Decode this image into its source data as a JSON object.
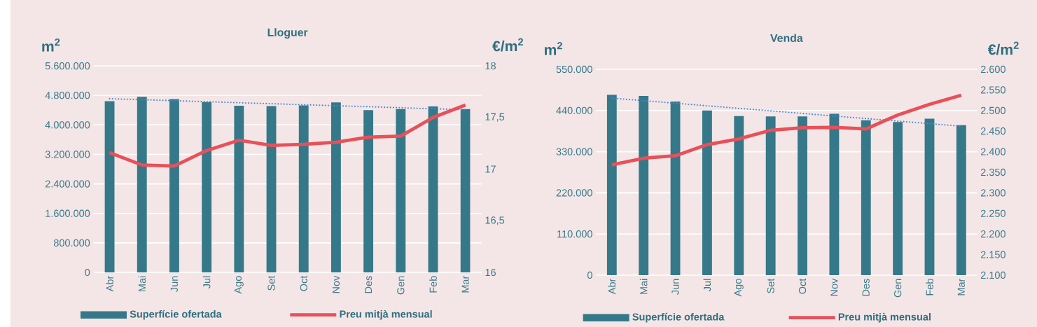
{
  "chart_data": [
    {
      "type": "bar",
      "title": "Lloguer",
      "ylabel": "m$^{2}$",
      "y2label": "€/m$^{2}$",
      "categories": [
        "Abr",
        "Mai",
        "Jun",
        "Jul",
        "Ago",
        "Set",
        "Oct",
        "Nov",
        "Des",
        "Gen",
        "Feb",
        "Mar"
      ],
      "series": [
        {
          "name": "Superfície ofertada",
          "color": "#35788a",
          "values": [
            4640000,
            4760000,
            4700000,
            4620000,
            4520000,
            4510000,
            4530000,
            4610000,
            4400000,
            4430000,
            4500000,
            4430000
          ]
        },
        {
          "name": "Preu mitjà mensual",
          "type": "line",
          "axis": "y2",
          "color": "#e8505a",
          "values": [
            17.16,
            17.04,
            17.03,
            17.18,
            17.28,
            17.23,
            17.24,
            17.26,
            17.31,
            17.32,
            17.5,
            17.62
          ]
        },
        {
          "type": "line",
          "line_style": "dotted",
          "color": "#4a86d8",
          "values": [
            4710000,
            null,
            null,
            null,
            null,
            null,
            null,
            null,
            null,
            null,
            null,
            4410000
          ]
        }
      ],
      "ylim": [
        0,
        5600000
      ],
      "yticks": [
        0,
        {
          "value": 800000,
          "label": "800.000"
        },
        {
          "value": 1600000,
          "label": "1.600.000"
        },
        {
          "value": 2400000,
          "label": "2.400.000"
        },
        {
          "value": 3200000,
          "label": "3.200.000"
        },
        {
          "value": 4000000,
          "label": "4.000.000"
        },
        {
          "value": 4800000,
          "label": "4.800.000"
        },
        {
          "value": 5600000,
          "label": "5.600.000"
        }
      ],
      "y2lim": [
        16,
        18
      ],
      "y2ticks": [
        16,
        {
          "value": 16.5,
          "label": "16,5"
        },
        17,
        {
          "value": 17.5,
          "label": "17,5"
        },
        18
      ],
      "grid": "y",
      "legend": "bottom"
    },
    {
      "type": "bar",
      "title": "Venda",
      "ylabel": "m$^{2}$",
      "y2label": "€/m$^{2}$",
      "categories": [
        "Abr",
        "Mai",
        "Jun",
        "Jul",
        "Ago",
        "Set",
        "Oct",
        "Nov",
        "Des",
        "Gen",
        "Feb",
        "Mar"
      ],
      "series": [
        {
          "name": "Superfície ofertada",
          "color": "#35788a",
          "values": [
            482000,
            479000,
            464000,
            440000,
            425000,
            424000,
            424000,
            431000,
            414000,
            409000,
            418000,
            401000
          ]
        },
        {
          "name": "Preu mitjà mensual",
          "type": "line",
          "axis": "y2",
          "color": "#e8505a",
          "values": [
            2368,
            2384,
            2390,
            2417,
            2431,
            2452,
            2458,
            2459,
            2455,
            2489,
            2515,
            2537
          ]
        },
        {
          "type": "line",
          "line_style": "dotted",
          "color": "#4a86d8",
          "values": [
            473000,
            null,
            null,
            null,
            null,
            null,
            null,
            null,
            null,
            null,
            null,
            398000
          ]
        }
      ],
      "ylim": [
        0,
        550000
      ],
      "yticks": [
        0,
        {
          "value": 110000,
          "label": "110.000"
        },
        {
          "value": 220000,
          "label": "220.000"
        },
        {
          "value": 330000,
          "label": "330.000"
        },
        {
          "value": 440000,
          "label": "440.000"
        },
        {
          "value": 550000,
          "label": "550.000"
        }
      ],
      "y2lim": [
        2100,
        2600
      ],
      "y2ticks": [
        {
          "value": 2100,
          "label": "2.100"
        },
        {
          "value": 2150,
          "label": "2.150"
        },
        {
          "value": 2200,
          "label": "2.200"
        },
        {
          "value": 2250,
          "label": "2.250"
        },
        {
          "value": 2300,
          "label": "2.300"
        },
        {
          "value": 2350,
          "label": "2.350"
        },
        {
          "value": 2400,
          "label": "2.400"
        },
        {
          "value": 2450,
          "label": "2.450"
        },
        {
          "value": 2500,
          "label": "2.500"
        },
        {
          "value": 2550,
          "label": "2.550"
        },
        {
          "value": 2600,
          "label": "2.600"
        }
      ],
      "grid": "y",
      "legend": "bottom"
    }
  ]
}
